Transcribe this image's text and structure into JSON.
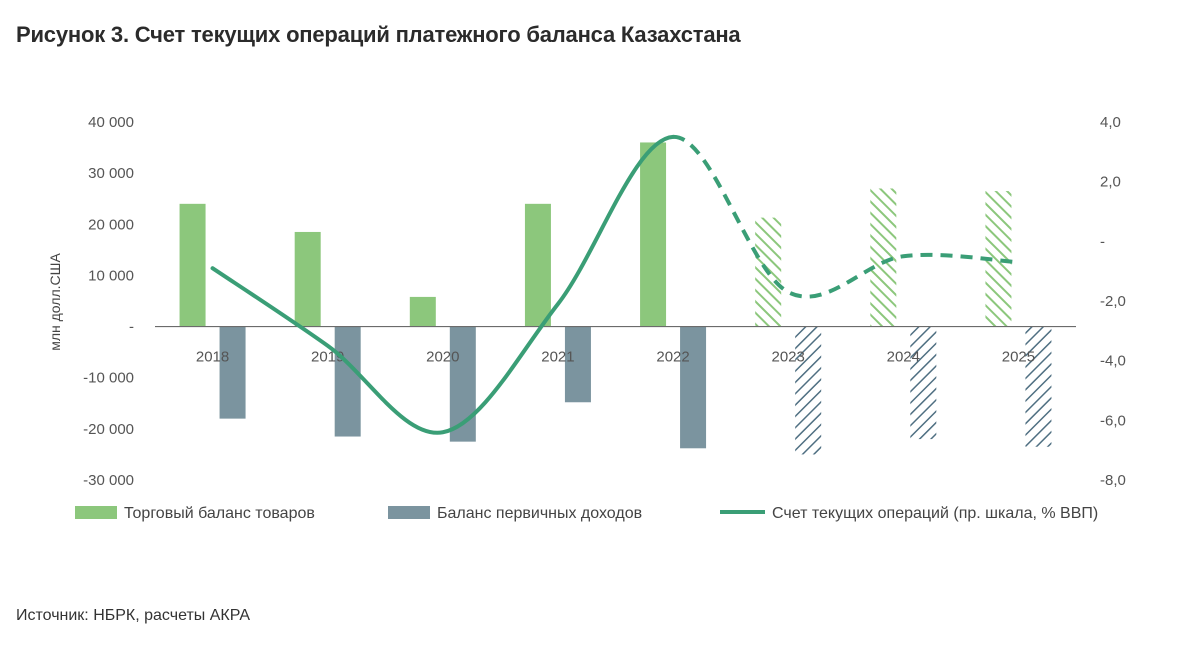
{
  "title": "Рисунок 3. Счет текущих операций платежного баланса Казахстана",
  "source": "Источник: НБРК, расчеты АКРА",
  "colors": {
    "trade": "#8cc77c",
    "income": "#7b949f",
    "income_forecast": "#4f6f82",
    "current_account": "#3a9e76",
    "axis": "#6b6b6b"
  },
  "chart_data": {
    "type": "bar",
    "categories": [
      "2018",
      "2019",
      "2020",
      "2021",
      "2022",
      "2023",
      "2024",
      "2025"
    ],
    "forecast_from": "2023",
    "left_axis": {
      "label": "млн долл.США",
      "range": [
        -30000,
        40000
      ],
      "ticks": [
        {
          "value": 40000,
          "label": "40 000"
        },
        {
          "value": 30000,
          "label": "30 000"
        },
        {
          "value": 20000,
          "label": "20 000"
        },
        {
          "value": 10000,
          "label": "10 000"
        },
        {
          "value": 0,
          "label": "-"
        },
        {
          "value": -10000,
          "label": "-10 000"
        },
        {
          "value": -20000,
          "label": "-20 000"
        },
        {
          "value": -30000,
          "label": "-30 000"
        }
      ]
    },
    "right_axis": {
      "label": "",
      "range": [
        -8,
        4
      ],
      "ticks": [
        {
          "value": 4,
          "label": "4,0"
        },
        {
          "value": 2,
          "label": "2,0"
        },
        {
          "value": 0,
          "label": "-"
        },
        {
          "value": -2,
          "label": "-2,0"
        },
        {
          "value": -4,
          "label": "-4,0"
        },
        {
          "value": -6,
          "label": "-6,0"
        },
        {
          "value": -8,
          "label": "-8,0"
        }
      ]
    },
    "series": [
      {
        "name": "Торговый баланс товаров",
        "kind": "bar",
        "axis": "left",
        "values": [
          24000,
          18500,
          5800,
          24000,
          36000,
          21300,
          27000,
          26500
        ]
      },
      {
        "name": "Баланс первичных доходов",
        "kind": "bar",
        "axis": "left",
        "values": [
          -18000,
          -21500,
          -22500,
          -14800,
          -23800,
          -25000,
          -22000,
          -23500
        ]
      },
      {
        "name": "Счет текущих операций (пр. шкала, % ВВП)",
        "kind": "line",
        "axis": "right",
        "values": [
          -0.9,
          -3.5,
          -6.4,
          -2.1,
          3.5,
          -1.7,
          -0.5,
          -0.7
        ]
      }
    ],
    "legend_position": "bottom"
  }
}
